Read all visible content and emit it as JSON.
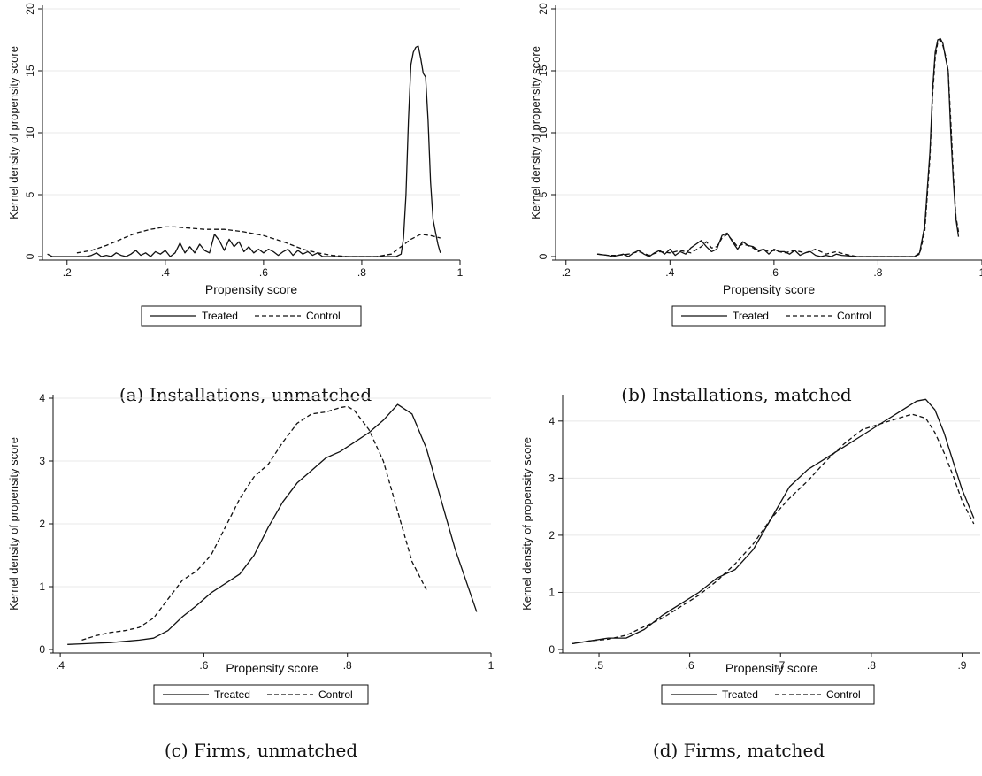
{
  "figure": {
    "panels": [
      {
        "caption": "(a) Installations, unmatched"
      },
      {
        "caption": "(b) Installations, matched"
      },
      {
        "caption": "(c) Firms, unmatched"
      },
      {
        "caption": "(d) Firms, matched"
      }
    ]
  },
  "colors": {
    "line": "#111111",
    "grid": "#e8e8e8"
  },
  "chart_data": [
    {
      "type": "line",
      "xlabel": "Propensity score",
      "ylabel": "Kernel density of propensity score",
      "xlim": [
        0.15,
        1.0
      ],
      "ylim": [
        0,
        20
      ],
      "xticks": [
        0.2,
        0.4,
        0.6,
        0.8,
        1
      ],
      "xtick_labels": [
        ".2",
        ".4",
        ".6",
        ".8",
        "1"
      ],
      "yticks": [
        0,
        5,
        10,
        15,
        20
      ],
      "ytick_labels": [
        "0",
        "5",
        "10",
        "15",
        "20"
      ],
      "ytick_rotated": true,
      "grid": true,
      "legend": "bottom-center",
      "series": [
        {
          "name": "Treated",
          "dash": "solid",
          "x": [
            0.16,
            0.17,
            0.18,
            0.2,
            0.22,
            0.24,
            0.25,
            0.26,
            0.27,
            0.28,
            0.29,
            0.3,
            0.31,
            0.32,
            0.33,
            0.34,
            0.35,
            0.36,
            0.37,
            0.38,
            0.39,
            0.4,
            0.41,
            0.42,
            0.43,
            0.44,
            0.45,
            0.46,
            0.47,
            0.48,
            0.49,
            0.5,
            0.51,
            0.52,
            0.53,
            0.54,
            0.55,
            0.56,
            0.57,
            0.58,
            0.59,
            0.6,
            0.61,
            0.62,
            0.63,
            0.64,
            0.65,
            0.66,
            0.67,
            0.68,
            0.69,
            0.7,
            0.71,
            0.72,
            0.74,
            0.76,
            0.78,
            0.8,
            0.82,
            0.84,
            0.86,
            0.87,
            0.88,
            0.885,
            0.89,
            0.895,
            0.9,
            0.905,
            0.91,
            0.915,
            0.92,
            0.925,
            0.93,
            0.935,
            0.94,
            0.945,
            0.95,
            0.955,
            0.96
          ],
          "y": [
            0.2,
            0.0,
            0.0,
            0.0,
            0.0,
            0.0,
            0.1,
            0.3,
            0.0,
            0.1,
            0.0,
            0.3,
            0.1,
            0.0,
            0.2,
            0.5,
            0.1,
            0.3,
            0.0,
            0.4,
            0.2,
            0.5,
            0.0,
            0.3,
            1.1,
            0.3,
            0.8,
            0.3,
            1.0,
            0.5,
            0.3,
            1.8,
            1.3,
            0.5,
            1.4,
            0.8,
            1.2,
            0.4,
            0.8,
            0.3,
            0.6,
            0.3,
            0.6,
            0.4,
            0.1,
            0.4,
            0.6,
            0.1,
            0.5,
            0.2,
            0.4,
            0.1,
            0.3,
            0.0,
            0.0,
            0.0,
            0.0,
            0.0,
            0.0,
            0.0,
            0.0,
            0.0,
            0.2,
            1.5,
            5.0,
            11.0,
            15.5,
            16.5,
            16.9,
            17.0,
            16.0,
            14.8,
            14.5,
            11.0,
            6.0,
            3.0,
            2.0,
            1.0,
            0.3
          ]
        },
        {
          "name": "Control",
          "dash": "dashed",
          "x": [
            0.22,
            0.25,
            0.28,
            0.31,
            0.34,
            0.37,
            0.4,
            0.42,
            0.45,
            0.48,
            0.52,
            0.56,
            0.6,
            0.64,
            0.68,
            0.71,
            0.74,
            0.77,
            0.8,
            0.83,
            0.86,
            0.88,
            0.9,
            0.92,
            0.94,
            0.96
          ],
          "y": [
            0.3,
            0.5,
            0.9,
            1.4,
            1.9,
            2.2,
            2.4,
            2.4,
            2.3,
            2.2,
            2.2,
            2.0,
            1.7,
            1.2,
            0.6,
            0.3,
            0.1,
            0.0,
            0.0,
            0.0,
            0.2,
            0.8,
            1.4,
            1.8,
            1.7,
            1.5
          ]
        }
      ]
    },
    {
      "type": "line",
      "xlabel": "Propensity score",
      "ylabel": "Kernel density of propensity score",
      "xlim": [
        0.18,
        1.0
      ],
      "ylim": [
        0,
        20
      ],
      "xticks": [
        0.2,
        0.4,
        0.6,
        0.8,
        1
      ],
      "xtick_labels": [
        ".2",
        ".4",
        ".6",
        ".8",
        "1"
      ],
      "yticks": [
        0,
        5,
        10,
        15,
        20
      ],
      "ytick_labels": [
        "0",
        "5",
        "10",
        "15",
        "20"
      ],
      "ytick_rotated": true,
      "grid": true,
      "legend": "bottom-center",
      "series": [
        {
          "name": "Treated",
          "dash": "solid",
          "x": [
            0.26,
            0.28,
            0.29,
            0.3,
            0.31,
            0.32,
            0.33,
            0.34,
            0.35,
            0.36,
            0.37,
            0.38,
            0.39,
            0.4,
            0.41,
            0.42,
            0.43,
            0.44,
            0.45,
            0.46,
            0.47,
            0.48,
            0.49,
            0.5,
            0.51,
            0.52,
            0.53,
            0.54,
            0.55,
            0.56,
            0.57,
            0.58,
            0.59,
            0.6,
            0.61,
            0.62,
            0.63,
            0.64,
            0.65,
            0.66,
            0.67,
            0.68,
            0.69,
            0.7,
            0.71,
            0.72,
            0.73,
            0.76,
            0.8,
            0.84,
            0.87,
            0.88,
            0.89,
            0.9,
            0.905,
            0.91,
            0.915,
            0.92,
            0.925,
            0.93,
            0.935,
            0.94,
            0.945,
            0.95,
            0.955
          ],
          "y": [
            0.2,
            0.1,
            0.0,
            0.1,
            0.2,
            0.0,
            0.3,
            0.5,
            0.2,
            0.0,
            0.3,
            0.5,
            0.2,
            0.6,
            0.1,
            0.4,
            0.2,
            0.7,
            1.0,
            1.3,
            0.8,
            0.4,
            0.6,
            1.7,
            1.9,
            1.2,
            0.6,
            1.2,
            0.9,
            0.8,
            0.5,
            0.6,
            0.2,
            0.6,
            0.4,
            0.4,
            0.2,
            0.5,
            0.1,
            0.3,
            0.4,
            0.1,
            0.0,
            0.1,
            0.0,
            0.2,
            0.1,
            0.0,
            0.0,
            0.0,
            0.0,
            0.3,
            2.5,
            8.5,
            13.5,
            16.5,
            17.5,
            17.6,
            17.2,
            16.0,
            15.0,
            10.0,
            6.0,
            3.0,
            1.6
          ]
        },
        {
          "name": "Control",
          "dash": "dashed",
          "x": [
            0.26,
            0.28,
            0.3,
            0.32,
            0.34,
            0.36,
            0.38,
            0.4,
            0.42,
            0.44,
            0.46,
            0.47,
            0.48,
            0.49,
            0.5,
            0.51,
            0.52,
            0.53,
            0.54,
            0.55,
            0.56,
            0.57,
            0.58,
            0.59,
            0.6,
            0.62,
            0.64,
            0.66,
            0.68,
            0.7,
            0.72,
            0.735,
            0.76,
            0.8,
            0.84,
            0.87,
            0.88,
            0.89,
            0.9,
            0.905,
            0.91,
            0.915,
            0.92,
            0.925,
            0.93,
            0.935,
            0.94,
            0.945,
            0.95,
            0.955
          ],
          "y": [
            0.2,
            0.1,
            0.1,
            0.2,
            0.4,
            0.1,
            0.4,
            0.3,
            0.5,
            0.3,
            0.8,
            1.2,
            0.7,
            0.8,
            1.5,
            1.8,
            1.3,
            0.8,
            1.0,
            0.9,
            0.7,
            0.4,
            0.6,
            0.4,
            0.5,
            0.3,
            0.5,
            0.3,
            0.6,
            0.2,
            0.4,
            0.2,
            0.0,
            0.0,
            0.0,
            0.0,
            0.2,
            2.0,
            8.0,
            13.0,
            16.0,
            17.3,
            17.5,
            17.0,
            16.2,
            15.0,
            11.0,
            6.5,
            3.2,
            2.0
          ]
        }
      ]
    },
    {
      "type": "line",
      "xlabel": "Propensity score",
      "ylabel": "Kernel density of propensity score",
      "xlim": [
        0.39,
        1.0
      ],
      "ylim": [
        0,
        4
      ],
      "xticks": [
        0.4,
        0.6,
        0.8,
        1
      ],
      "xtick_labels": [
        ".4",
        ".6",
        ".8",
        "1"
      ],
      "yticks": [
        0,
        1,
        2,
        3,
        4
      ],
      "ytick_labels": [
        "0",
        "1",
        "2",
        "3",
        "4"
      ],
      "ytick_rotated": false,
      "grid": true,
      "legend": "bottom-center",
      "series": [
        {
          "name": "Treated",
          "dash": "solid",
          "x": [
            0.41,
            0.43,
            0.45,
            0.47,
            0.49,
            0.51,
            0.53,
            0.55,
            0.57,
            0.59,
            0.61,
            0.63,
            0.65,
            0.67,
            0.69,
            0.71,
            0.73,
            0.75,
            0.77,
            0.79,
            0.81,
            0.83,
            0.85,
            0.87,
            0.89,
            0.91,
            0.93,
            0.95,
            0.98
          ],
          "y": [
            0.08,
            0.09,
            0.1,
            0.11,
            0.13,
            0.15,
            0.18,
            0.3,
            0.52,
            0.7,
            0.9,
            1.05,
            1.2,
            1.5,
            1.95,
            2.35,
            2.65,
            2.85,
            3.05,
            3.15,
            3.3,
            3.45,
            3.65,
            3.9,
            3.75,
            3.2,
            2.4,
            1.6,
            0.6
          ]
        },
        {
          "name": "Control",
          "dash": "dashed",
          "x": [
            0.43,
            0.45,
            0.47,
            0.49,
            0.51,
            0.53,
            0.55,
            0.57,
            0.59,
            0.61,
            0.63,
            0.65,
            0.67,
            0.69,
            0.71,
            0.73,
            0.75,
            0.77,
            0.79,
            0.8,
            0.81,
            0.83,
            0.85,
            0.87,
            0.89,
            0.91
          ],
          "y": [
            0.15,
            0.22,
            0.27,
            0.3,
            0.35,
            0.5,
            0.8,
            1.1,
            1.25,
            1.5,
            1.95,
            2.4,
            2.75,
            2.95,
            3.3,
            3.6,
            3.75,
            3.78,
            3.85,
            3.87,
            3.8,
            3.5,
            3.0,
            2.2,
            1.4,
            0.95
          ]
        }
      ]
    },
    {
      "type": "line",
      "xlabel": "Propensity score",
      "ylabel": "Kernel density of propensity score",
      "xlim": [
        0.46,
        0.92
      ],
      "ylim": [
        0,
        4.4
      ],
      "xticks": [
        0.5,
        0.6,
        0.7,
        0.8,
        0.9
      ],
      "xtick_labels": [
        ".5",
        ".6",
        ".7",
        ".8",
        ".9"
      ],
      "yticks": [
        0,
        1,
        2,
        3,
        4
      ],
      "ytick_labels": [
        "0",
        "1",
        "2",
        "3",
        "4"
      ],
      "ytick_rotated": false,
      "grid": true,
      "legend": "bottom-center",
      "series": [
        {
          "name": "Treated",
          "dash": "solid",
          "x": [
            0.47,
            0.49,
            0.51,
            0.53,
            0.55,
            0.57,
            0.59,
            0.61,
            0.63,
            0.65,
            0.67,
            0.69,
            0.71,
            0.73,
            0.75,
            0.77,
            0.79,
            0.81,
            0.83,
            0.85,
            0.86,
            0.87,
            0.88,
            0.89,
            0.9,
            0.913
          ],
          "y": [
            0.1,
            0.15,
            0.2,
            0.2,
            0.35,
            0.6,
            0.8,
            1.0,
            1.25,
            1.4,
            1.75,
            2.3,
            2.85,
            3.15,
            3.35,
            3.55,
            3.75,
            3.95,
            4.15,
            4.35,
            4.38,
            4.2,
            3.8,
            3.3,
            2.8,
            2.3
          ]
        },
        {
          "name": "Control",
          "dash": "dashed",
          "x": [
            0.47,
            0.49,
            0.51,
            0.53,
            0.55,
            0.57,
            0.59,
            0.61,
            0.63,
            0.65,
            0.67,
            0.69,
            0.71,
            0.73,
            0.75,
            0.77,
            0.79,
            0.81,
            0.83,
            0.845,
            0.86,
            0.87,
            0.88,
            0.89,
            0.9,
            0.913
          ],
          "y": [
            0.1,
            0.15,
            0.18,
            0.25,
            0.4,
            0.55,
            0.75,
            0.95,
            1.2,
            1.5,
            1.85,
            2.3,
            2.65,
            2.95,
            3.3,
            3.6,
            3.85,
            3.95,
            4.05,
            4.12,
            4.05,
            3.8,
            3.45,
            3.05,
            2.6,
            2.2
          ]
        }
      ]
    }
  ]
}
